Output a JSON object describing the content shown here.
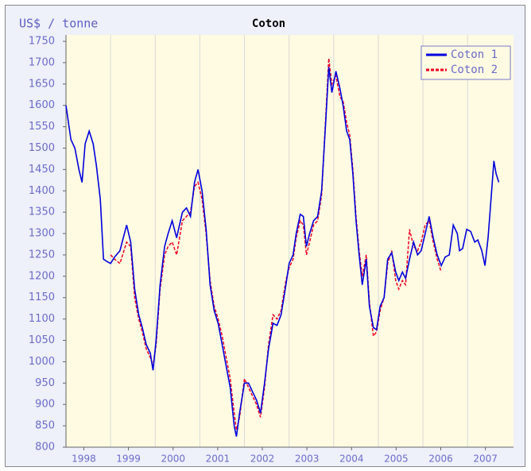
{
  "chart_data": {
    "type": "line",
    "title": "Coton",
    "y_label": "US$ / tonne",
    "x": [
      1998.0,
      1998.11,
      1998.2,
      1998.29,
      1998.36,
      1998.43,
      1998.52,
      1998.61,
      1998.68,
      1998.77,
      1998.84,
      1998.91,
      1999.0,
      1999.09,
      1999.21,
      1999.36,
      1999.45,
      1999.54,
      1999.63,
      1999.71,
      1999.8,
      1999.89,
      1999.95,
      2000.02,
      2000.11,
      2000.21,
      2000.29,
      2000.38,
      2000.48,
      2000.61,
      2000.7,
      2000.79,
      2000.88,
      2000.96,
      2001.05,
      2001.14,
      2001.23,
      2001.32,
      2001.41,
      2001.5,
      2001.59,
      2001.68,
      2001.77,
      2001.82,
      2001.89,
      2002.0,
      2002.09,
      2002.18,
      2002.27,
      2002.36,
      2002.45,
      2002.54,
      2002.64,
      2002.73,
      2002.82,
      2002.93,
      2003.0,
      2003.09,
      2003.16,
      2003.25,
      2003.32,
      2003.39,
      2003.46,
      2003.55,
      2003.64,
      2003.73,
      2003.82,
      2003.89,
      2003.96,
      2004.05,
      2004.14,
      2004.21,
      2004.29,
      2004.36,
      2004.43,
      2004.5,
      2004.57,
      2004.64,
      2004.73,
      2004.8,
      2004.89,
      2004.96,
      2005.04,
      2005.13,
      2005.21,
      2005.3,
      2005.39,
      2005.46,
      2005.54,
      2005.61,
      2005.7,
      2005.79,
      2005.88,
      2005.96,
      2006.05,
      2006.14,
      2006.23,
      2006.32,
      2006.41,
      2006.5,
      2006.59,
      2006.68,
      2006.77,
      2006.82,
      2006.89,
      2006.98,
      2007.07,
      2007.16,
      2007.23,
      2007.32,
      2007.39,
      2007.46,
      2007.54,
      2007.59,
      2007.64,
      2007.7
    ],
    "series": [
      {
        "name": "Coton 1",
        "color": "#0000dd",
        "dash": false,
        "values": [
          1600,
          1520,
          1500,
          1450,
          1420,
          1510,
          1540,
          1510,
          1460,
          1380,
          1240,
          1235,
          1230,
          1245,
          1260,
          1320,
          1280,
          1170,
          1110,
          1080,
          1040,
          1020,
          980,
          1050,
          1180,
          1270,
          1300,
          1330,
          1290,
          1350,
          1360,
          1340,
          1420,
          1450,
          1400,
          1310,
          1180,
          1120,
          1090,
          1040,
          990,
          940,
          850,
          825,
          880,
          950,
          950,
          930,
          910,
          880,
          950,
          1030,
          1090,
          1085,
          1110,
          1180,
          1230,
          1250,
          1300,
          1345,
          1340,
          1270,
          1300,
          1330,
          1340,
          1400,
          1560,
          1690,
          1630,
          1680,
          1640,
          1600,
          1540,
          1520,
          1440,
          1330,
          1250,
          1180,
          1240,
          1130,
          1080,
          1075,
          1130,
          1150,
          1240,
          1255,
          1210,
          1190,
          1210,
          1195,
          1240,
          1280,
          1250,
          1260,
          1300,
          1340,
          1290,
          1250,
          1225,
          1245,
          1250,
          1320,
          1300,
          1260,
          1265,
          1310,
          1305,
          1280,
          1285,
          1260,
          1225,
          1290,
          1400,
          1470,
          1440,
          1420
        ]
      },
      {
        "name": "Coton 2",
        "color": "#ee0022",
        "dash": true,
        "values": [
          null,
          null,
          null,
          null,
          null,
          null,
          null,
          null,
          null,
          null,
          null,
          null,
          1250,
          1240,
          1230,
          1280,
          1270,
          1150,
          1100,
          1070,
          1030,
          1010,
          990,
          1040,
          1170,
          1250,
          1270,
          1280,
          1250,
          1330,
          1340,
          1350,
          1410,
          1420,
          1380,
          1300,
          1190,
          1130,
          1100,
          1060,
          1010,
          960,
          880,
          840,
          870,
          960,
          940,
          920,
          900,
          870,
          940,
          1040,
          1110,
          1100,
          1120,
          1190,
          1220,
          1240,
          1290,
          1330,
          1320,
          1250,
          1280,
          1320,
          1330,
          1390,
          1570,
          1710,
          1650,
          1670,
          1620,
          1610,
          1560,
          1530,
          1450,
          1340,
          1260,
          1200,
          1250,
          1140,
          1060,
          1070,
          1120,
          1150,
          1230,
          1260,
          1190,
          1170,
          1190,
          1180,
          1310,
          1270,
          1260,
          1280,
          1320,
          1330,
          1280,
          1240,
          1210,
          null,
          null,
          null,
          null,
          null,
          null,
          null,
          null,
          null,
          null,
          null,
          null,
          null,
          null,
          null,
          null,
          null
        ]
      }
    ],
    "xlim": [
      1998,
      2008.03
    ],
    "xticks": [
      {
        "value": 1998.4,
        "label": "1998"
      },
      {
        "value": 1999.4,
        "label": "1999"
      },
      {
        "value": 2000.4,
        "label": "2000"
      },
      {
        "value": 2001.4,
        "label": "2001"
      },
      {
        "value": 2002.4,
        "label": "2002"
      },
      {
        "value": 2003.4,
        "label": "2003"
      },
      {
        "value": 2004.4,
        "label": "2004"
      },
      {
        "value": 2005.4,
        "label": "2005"
      },
      {
        "value": 2006.4,
        "label": "2006"
      },
      {
        "value": 2007.4,
        "label": "2007"
      }
    ],
    "xgrid": [
      1999,
      2000,
      2001,
      2002,
      2003,
      2004,
      2005,
      2006,
      2007
    ],
    "ylim": [
      800,
      1750
    ],
    "yticks": [
      800,
      850,
      900,
      950,
      1000,
      1050,
      1100,
      1150,
      1200,
      1250,
      1300,
      1350,
      1400,
      1450,
      1500,
      1550,
      1600,
      1650,
      1700,
      1750
    ],
    "legend": "top-right"
  }
}
